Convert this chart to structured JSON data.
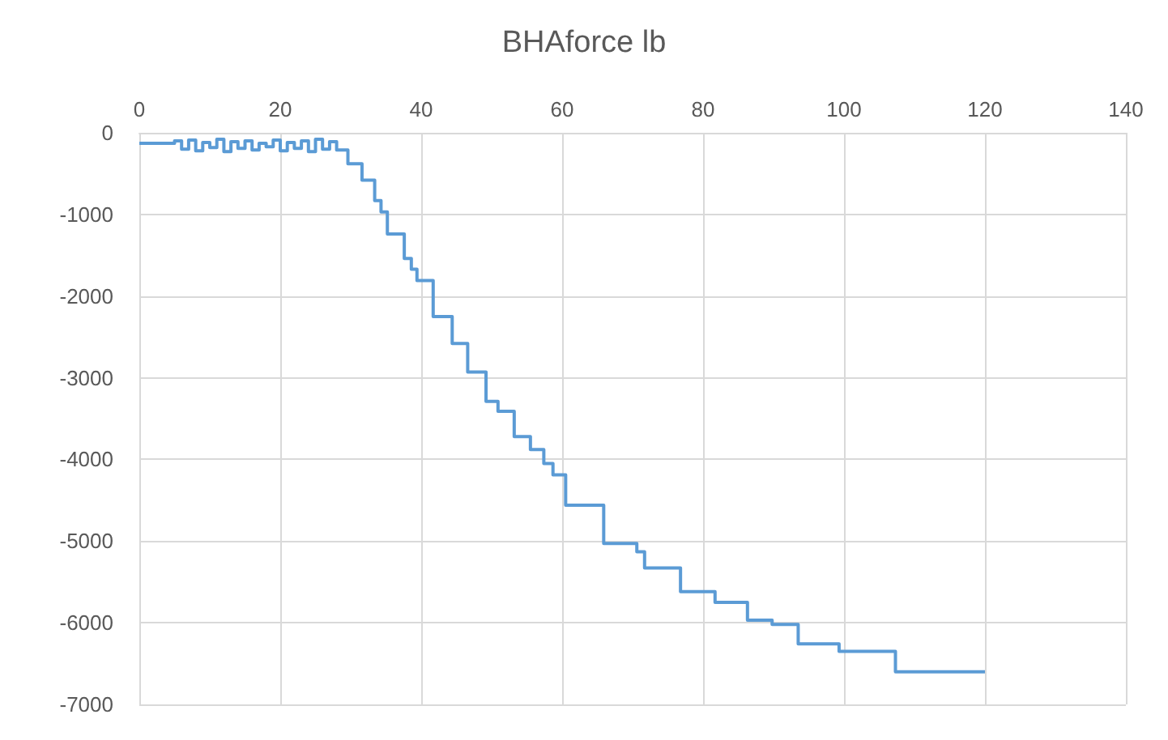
{
  "chart_data": {
    "type": "step",
    "title": "BHAforce lb",
    "x": [
      0,
      5,
      6,
      7,
      8,
      9,
      10,
      11,
      12,
      13,
      14,
      15,
      16,
      17,
      18,
      19,
      20,
      21,
      22,
      23,
      24,
      25,
      26,
      27,
      28,
      29.6,
      31.6,
      33.4,
      34.3,
      35.2,
      37.6,
      38.6,
      39.4,
      41.7,
      44.4,
      46.6,
      49.2,
      50.9,
      53.2,
      55.5,
      57.4,
      58.7,
      60.5,
      65.9,
      70.6,
      71.7,
      76.8,
      81.7,
      86.3,
      89.8,
      93.5,
      99.3,
      107.3,
      120
    ],
    "series": [
      {
        "color": "#5b9bd5",
        "values": [
          -130,
          -100,
          -200,
          -90,
          -220,
          -120,
          -180,
          -80,
          -230,
          -110,
          -190,
          -100,
          -210,
          -130,
          -170,
          -90,
          -220,
          -120,
          -190,
          -100,
          -230,
          -80,
          -200,
          -110,
          -210,
          -380,
          -580,
          -830,
          -970,
          -1240,
          -1540,
          -1670,
          -1810,
          -2250,
          -2580,
          -2930,
          -3290,
          -3410,
          -3720,
          -3880,
          -4050,
          -4190,
          -4560,
          -5030,
          -5130,
          -5330,
          -5620,
          -5750,
          -5970,
          -6020,
          -6260,
          -6350,
          -6600,
          -6600
        ]
      }
    ],
    "xlim": [
      0,
      140
    ],
    "xticks": [
      0,
      20,
      40,
      60,
      80,
      100,
      120,
      140
    ],
    "ylim": [
      -7000,
      0
    ],
    "yticks": [
      -7000,
      -6000,
      -5000,
      -4000,
      -3000,
      -2000,
      -1000,
      0
    ],
    "grid": true,
    "marker": "none",
    "line_style": "solid"
  }
}
